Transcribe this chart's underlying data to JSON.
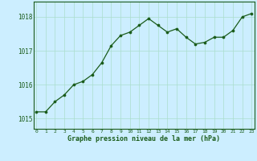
{
  "x": [
    0,
    1,
    2,
    3,
    4,
    5,
    6,
    7,
    8,
    9,
    10,
    11,
    12,
    13,
    14,
    15,
    16,
    17,
    18,
    19,
    20,
    21,
    22,
    23
  ],
  "y": [
    1015.2,
    1015.2,
    1015.5,
    1015.7,
    1016.0,
    1016.1,
    1016.3,
    1016.65,
    1017.15,
    1017.45,
    1017.55,
    1017.75,
    1017.95,
    1017.75,
    1017.55,
    1017.65,
    1017.4,
    1017.2,
    1017.25,
    1017.4,
    1017.4,
    1017.6,
    1018.0,
    1018.1
  ],
  "line_color": "#1a5c1a",
  "marker_color": "#1a5c1a",
  "bg_color": "#cceeff",
  "grid_color": "#aaddcc",
  "title": "Graphe pression niveau de la mer (hPa)",
  "title_color": "#1a5c1a",
  "ylabel_ticks": [
    1015,
    1016,
    1017,
    1018
  ],
  "xlim": [
    -0.3,
    23.3
  ],
  "ylim": [
    1014.7,
    1018.45
  ],
  "xlabel_ticks": [
    0,
    1,
    2,
    3,
    4,
    5,
    6,
    7,
    8,
    9,
    10,
    11,
    12,
    13,
    14,
    15,
    16,
    17,
    18,
    19,
    20,
    21,
    22,
    23
  ]
}
